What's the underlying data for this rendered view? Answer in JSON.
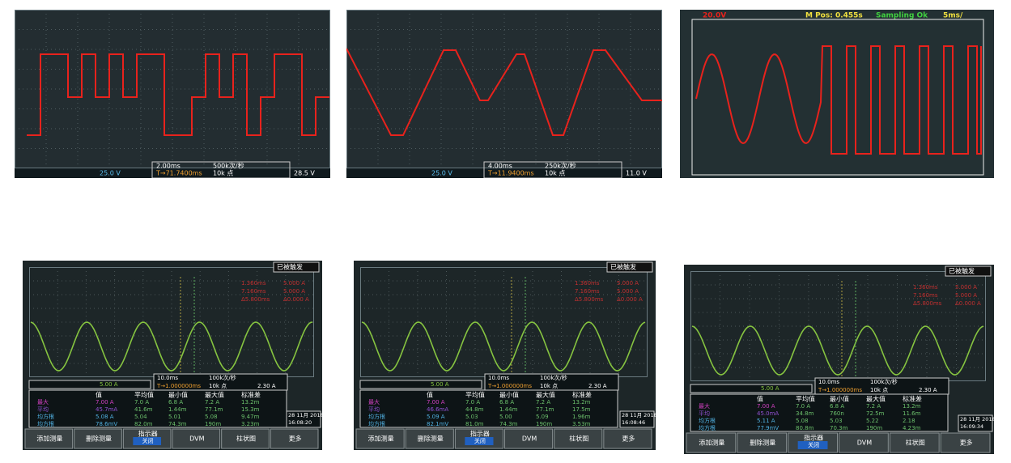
{
  "top_panels": [
    {
      "timebase": "2.00ms",
      "rate": "500k次/秒",
      "channel": "25.0 V",
      "trigger_pos": "T→71.7400ms",
      "points": "10k 点",
      "trigger_level": "28.5 V"
    },
    {
      "timebase": "4.00ms",
      "rate": "250k次/秒",
      "channel": "25.0 V",
      "trigger_pos": "T→11.9400ms",
      "points": "10k 点",
      "trigger_level": "11.0 V"
    }
  ],
  "sampling_panel": {
    "scale": "20.0V",
    "m_pos": "M Pos: 0.455s",
    "status": "Sampling Ok",
    "timebase": "5ms/"
  },
  "bottom_panels": [
    {
      "status": "已被触发",
      "channel": "5.00 A",
      "timebase": "10.0ms",
      "rate": "100k次/秒",
      "trigger_pos": "T→1.000000ms",
      "points": "10k 点",
      "trigger_level": "2.30 A",
      "cursor_a": [
        "1.360ms",
        "5.000 A"
      ],
      "cursor_b": [
        "7.160ms",
        "5.000 A"
      ],
      "cursor_delta": [
        "Δ5.800ms",
        "Δ0.000 A"
      ],
      "headers": [
        "值",
        "平均值",
        "最小值",
        "最大值",
        "标准差"
      ],
      "rows": [
        [
          "最大",
          "7.00 A",
          "7.0 A",
          "6.8 A",
          "7.2 A",
          "13.2m"
        ],
        [
          "平均",
          "45.7mA",
          "41.6m",
          "1.44m",
          "77.1m",
          "15.3m"
        ],
        [
          "均方根",
          "5.08 A",
          "5.04",
          "5.01",
          "5.08",
          "9.47m"
        ],
        [
          "均方根",
          "78.6mV",
          "82.0m",
          "74.3m",
          "190m",
          "3.23m"
        ]
      ],
      "date": "28 11月 2018",
      "time": "16:08:20",
      "buttons": [
        "添加测量",
        "删除测量",
        "指示器",
        "DVM",
        "柱状图",
        "更多"
      ],
      "indicator_state": "关闭"
    },
    {
      "status": "已被触发",
      "channel": "5.00 A",
      "timebase": "10.0ms",
      "rate": "100k次/秒",
      "trigger_pos": "T→1.000000ms",
      "points": "10k 点",
      "trigger_level": "2.30 A",
      "cursor_a": [
        "1.360ms",
        "5.000 A"
      ],
      "cursor_b": [
        "7.160ms",
        "5.000 A"
      ],
      "cursor_delta": [
        "Δ5.800ms",
        "Δ0.000 A"
      ],
      "headers": [
        "值",
        "平均值",
        "最小值",
        "最大值",
        "标准差"
      ],
      "rows": [
        [
          "最大",
          "7.00 A",
          "7.0 A",
          "6.8 A",
          "7.2 A",
          "13.2m"
        ],
        [
          "平均",
          "46.6mA",
          "44.8m",
          "1.44m",
          "77.1m",
          "17.5m"
        ],
        [
          "均方根",
          "5.09 A",
          "5.03",
          "5.00",
          "5.09",
          "1.96m"
        ],
        [
          "均方根",
          "82.1mV",
          "81.0m",
          "74.3m",
          "190m",
          "3.53m"
        ]
      ],
      "date": "28 11月 2018",
      "time": "16:08:46",
      "buttons": [
        "添加测量",
        "删除测量",
        "指示器",
        "DVM",
        "柱状图",
        "更多"
      ],
      "indicator_state": "关闭"
    },
    {
      "status": "已被触发",
      "channel": "5.00 A",
      "timebase": "10.0ms",
      "rate": "100k次/秒",
      "trigger_pos": "T→1.000000ms",
      "points": "10k 点",
      "trigger_level": "2.30 A",
      "cursor_a": [
        "1.360ms",
        "5.000 A"
      ],
      "cursor_b": [
        "7.160ms",
        "5.000 A"
      ],
      "cursor_delta": [
        "Δ5.800ms",
        "Δ0.000 A"
      ],
      "headers": [
        "值",
        "平均值",
        "最小值",
        "最大值",
        "标准差"
      ],
      "rows": [
        [
          "最大",
          "7.00 A",
          "7.0 A",
          "6.8 A",
          "7.2 A",
          "13.2m"
        ],
        [
          "平均",
          "45.0mA",
          "34.8m",
          "760n",
          "72.5m",
          "11.6m"
        ],
        [
          "均方根",
          "5.11 A",
          "5.08",
          "5.03",
          "5.22",
          "2.18"
        ],
        [
          "均方根",
          "77.9mV",
          "80.8m",
          "70.3m",
          "190m",
          "4.23m"
        ]
      ],
      "date": "28 11月 2018",
      "time": "16:09:34",
      "buttons": [
        "添加测量",
        "删除测量",
        "指示器",
        "DVM",
        "柱状图",
        "更多"
      ],
      "indicator_state": "关闭"
    }
  ]
}
